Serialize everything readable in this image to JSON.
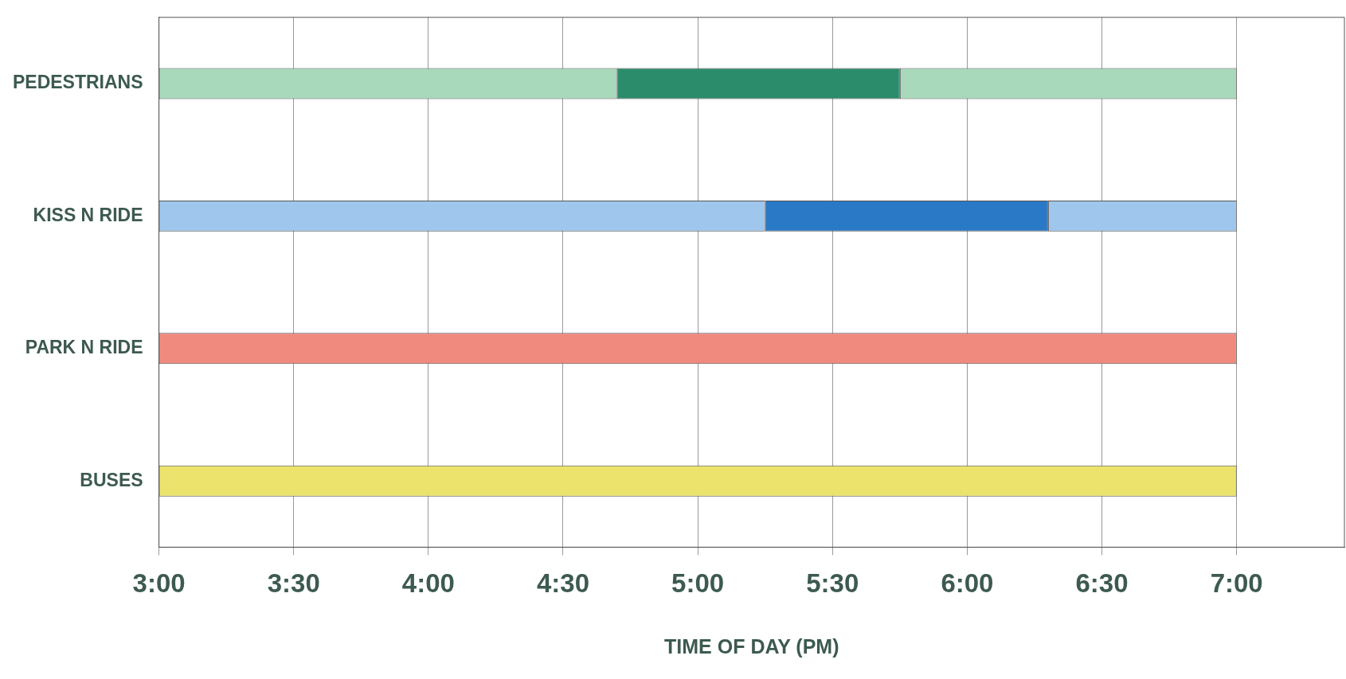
{
  "chart_data": {
    "type": "bar",
    "orientation": "horizontal",
    "xlabel": "TIME OF DAY (PM)",
    "categories": [
      "PEDESTRIANS",
      "KISS N RIDE",
      "PARK N RIDE",
      "BUSES"
    ],
    "series": [
      {
        "colors": [
          "#a9d9bb",
          "#9fc6ec",
          "#f08a7e",
          "#ece36c"
        ],
        "base": [
          3,
          3,
          3,
          3
        ],
        "values": [
          1.7,
          2.25,
          4,
          4
        ]
      },
      {
        "colors": [
          "#2b8c6b",
          "#2a79c6",
          null,
          null
        ],
        "base": [
          4.7,
          5.25,
          null,
          null
        ],
        "values": [
          1.05,
          1.05,
          null,
          null
        ]
      },
      {
        "colors": [
          "#a9d9bb",
          "#9fc6ec",
          null,
          null
        ],
        "base": [
          5.75,
          6.3,
          null,
          null
        ],
        "values": [
          1.25,
          0.7,
          null,
          null
        ]
      }
    ],
    "xlim": [
      3,
      7.4
    ],
    "xticks": [
      {
        "value": 3,
        "label": "3:00"
      },
      {
        "value": 3.5,
        "label": "3:30"
      },
      {
        "value": 4,
        "label": "4:00"
      },
      {
        "value": 4.5,
        "label": "4:30"
      },
      {
        "value": 5,
        "label": "5:00"
      },
      {
        "value": 5.5,
        "label": "5:30"
      },
      {
        "value": 6,
        "label": "6:00"
      },
      {
        "value": 6.5,
        "label": "6:30"
      },
      {
        "value": 7,
        "label": "7:00"
      }
    ],
    "grid": "x",
    "legend": false
  }
}
